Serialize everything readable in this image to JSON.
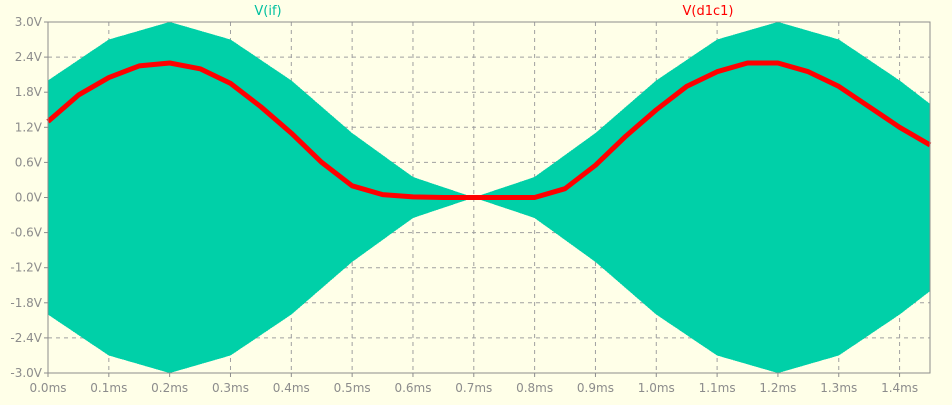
{
  "chart_data": {
    "type": "line",
    "x_unit": "ms",
    "y_unit": "V",
    "xlim": [
      0.0,
      1.45
    ],
    "ylim": [
      -3.0,
      3.0
    ],
    "grid": true,
    "x_ticks": [
      "0.0ms",
      "0.1ms",
      "0.2ms",
      "0.3ms",
      "0.4ms",
      "0.5ms",
      "0.6ms",
      "0.7ms",
      "0.8ms",
      "0.9ms",
      "1.0ms",
      "1.1ms",
      "1.2ms",
      "1.3ms",
      "1.4ms"
    ],
    "y_ticks": [
      "3.0V",
      "2.4V",
      "1.8V",
      "1.2V",
      "0.6V",
      "0.0V",
      "-0.6V",
      "-1.2V",
      "-1.8V",
      "-2.4V",
      "-3.0V"
    ],
    "series": [
      {
        "name": "V(if)",
        "color": "#00d0a8",
        "description_points": {
          "x": [
            0.0,
            0.1,
            0.2,
            0.3,
            0.4,
            0.5,
            0.6,
            0.7,
            0.8,
            0.9,
            1.0,
            1.1,
            1.2,
            1.3,
            1.4,
            1.45
          ],
          "envelope_upper": [
            2.0,
            2.7,
            3.0,
            2.7,
            2.0,
            1.1,
            0.35,
            0.0,
            0.35,
            1.1,
            2.0,
            2.7,
            3.0,
            2.7,
            2.0,
            1.6
          ],
          "envelope_lower": [
            -2.0,
            -2.7,
            -3.0,
            -2.7,
            -2.0,
            -1.1,
            -0.35,
            0.0,
            -0.35,
            -1.1,
            -2.0,
            -2.7,
            -3.0,
            -2.7,
            -2.0,
            -1.6
          ]
        }
      },
      {
        "name": "V(d1c1)",
        "color": "#ff0000",
        "x": [
          0.0,
          0.05,
          0.1,
          0.15,
          0.2,
          0.25,
          0.3,
          0.35,
          0.4,
          0.45,
          0.5,
          0.55,
          0.6,
          0.65,
          0.7,
          0.75,
          0.8,
          0.85,
          0.9,
          0.95,
          1.0,
          1.05,
          1.1,
          1.15,
          1.2,
          1.25,
          1.3,
          1.35,
          1.4,
          1.45
        ],
        "y": [
          1.3,
          1.75,
          2.05,
          2.25,
          2.3,
          2.2,
          1.95,
          1.55,
          1.1,
          0.6,
          0.2,
          0.05,
          0.01,
          0.0,
          0.0,
          0.0,
          0.0,
          0.15,
          0.55,
          1.05,
          1.5,
          1.9,
          2.15,
          2.3,
          2.3,
          2.15,
          1.9,
          1.55,
          1.2,
          0.9
        ]
      }
    ]
  }
}
